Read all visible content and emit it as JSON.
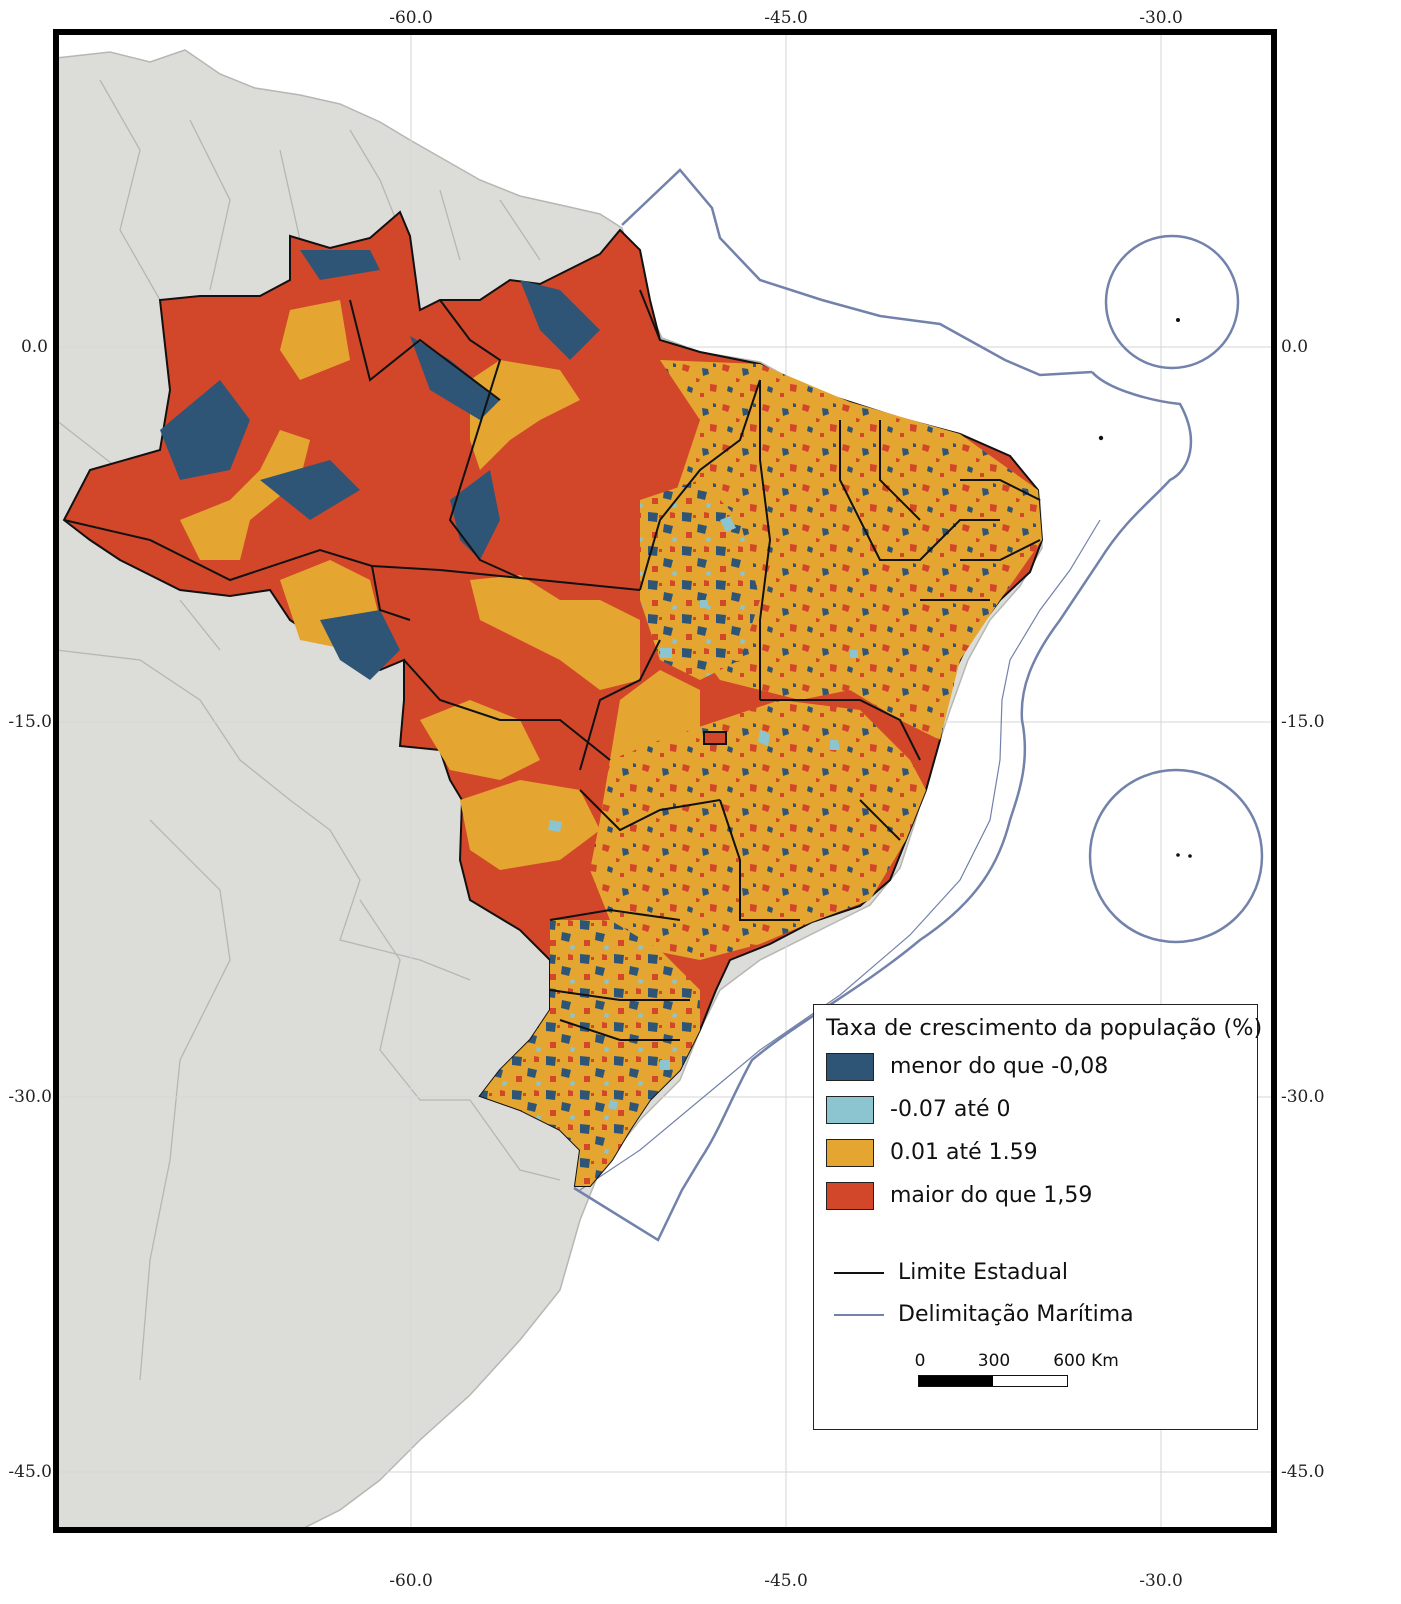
{
  "map": {
    "colors": {
      "sea": "#ffffff",
      "land": "#dcdcd8",
      "land_border": "#b6b6b3",
      "graticule": "#d6d6d6",
      "state_boundary": "#111111",
      "maritime_boundary": "#7282ab",
      "frame": "#000000"
    },
    "axes": {
      "top_ticks": [
        "-60.0",
        "-45.0",
        "-30.0"
      ],
      "bottom_ticks": [
        "-60.0",
        "-45.0",
        "-30.0"
      ],
      "left_ticks": [
        "0.0",
        "-15.0",
        "-30.0",
        "-45.0"
      ],
      "right_ticks": [
        "0.0",
        "-15.0",
        "-30.0",
        "-45.0"
      ]
    },
    "legend": {
      "title": "Taxa de crescimento da população (%)",
      "classes": [
        {
          "label": "menor do que -0,08",
          "color": "#2e5576"
        },
        {
          "label": "-0.07 até  0",
          "color": "#8cc4d0"
        },
        {
          "label": "0.01 até 1.59",
          "color": "#e5a631"
        },
        {
          "label": "maior do que 1,59",
          "color": "#d2472a"
        }
      ],
      "lines": [
        {
          "label": "Limite Estadual",
          "color": "#111111"
        },
        {
          "label": "Delimitação Marítima",
          "color": "#7282ab"
        }
      ],
      "scale": {
        "labels": [
          "0",
          "300",
          "600 Km"
        ]
      }
    }
  }
}
